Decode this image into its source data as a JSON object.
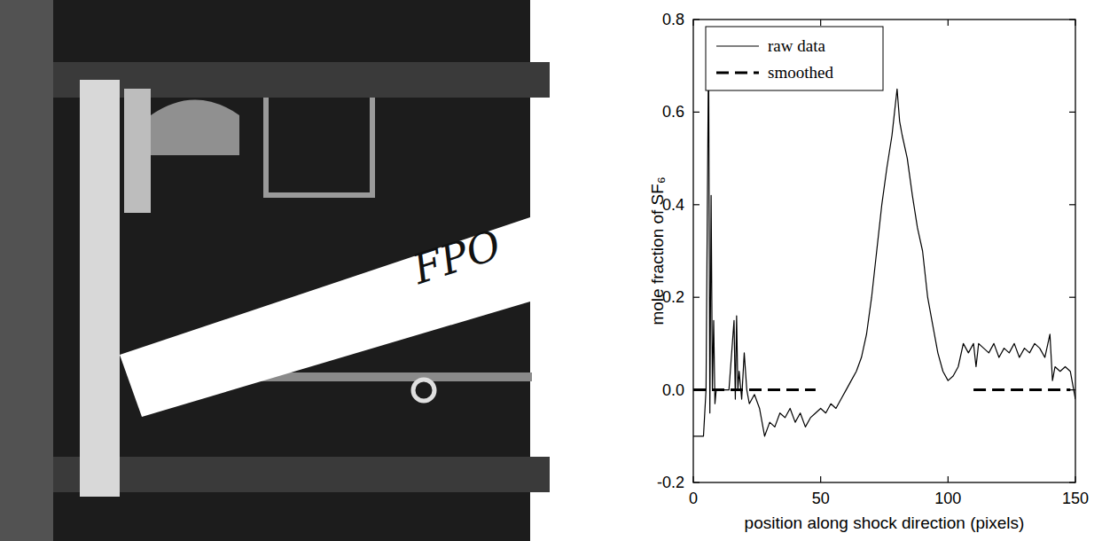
{
  "chart_data": {
    "type": "line",
    "x_label": "position along shock direction (pixels)",
    "y_label": "mole fraction of SF₆",
    "xlim": [
      0,
      150
    ],
    "xticks": [
      0,
      50,
      100,
      150
    ],
    "ylim": [
      -0.2,
      0.8
    ],
    "yticks": [
      -0.2,
      {
        "value": 0,
        "label": "0.0"
      },
      0.2,
      0.4,
      0.6,
      0.8
    ],
    "legend": "upper left",
    "series": [
      {
        "name": "raw data",
        "color": "#000000",
        "line_style": "solid",
        "x": [
          0,
          2,
          4,
          5,
          6,
          6.5,
          7,
          7.5,
          8,
          8.5,
          9,
          10,
          12,
          14,
          16,
          16.5,
          17,
          17.5,
          18,
          19,
          20,
          21,
          22,
          24,
          26,
          28,
          30,
          32,
          34,
          36,
          38,
          40,
          42,
          44,
          46,
          48,
          50,
          52,
          54,
          56,
          58,
          60,
          62,
          64,
          66,
          68,
          70,
          72,
          74,
          76,
          78,
          79,
          80,
          81,
          82,
          84,
          86,
          88,
          90,
          92,
          94,
          96,
          98,
          100,
          102,
          104,
          106,
          108,
          110,
          111,
          112,
          114,
          116,
          118,
          120,
          122,
          124,
          126,
          128,
          130,
          132,
          134,
          136,
          138,
          140,
          141,
          142,
          144,
          146,
          148,
          150
        ],
        "values": [
          -0.1,
          -0.1,
          -0.1,
          0,
          0.75,
          -0.05,
          0.42,
          0,
          0.15,
          -0.03,
          0,
          0,
          0,
          0,
          0.15,
          -0.02,
          0.16,
          0,
          0.04,
          -0.02,
          0.08,
          0,
          -0.03,
          -0.01,
          -0.04,
          -0.1,
          -0.07,
          -0.08,
          -0.05,
          -0.06,
          -0.04,
          -0.07,
          -0.05,
          -0.08,
          -0.06,
          -0.05,
          -0.04,
          -0.05,
          -0.03,
          -0.04,
          -0.02,
          0,
          0.02,
          0.04,
          0.07,
          0.12,
          0.2,
          0.3,
          0.4,
          0.48,
          0.55,
          0.6,
          0.65,
          0.58,
          0.55,
          0.5,
          0.42,
          0.35,
          0.3,
          0.2,
          0.14,
          0.08,
          0.04,
          0.02,
          0.03,
          0.05,
          0.1,
          0.08,
          0.1,
          0.05,
          0.1,
          0.09,
          0.08,
          0.1,
          0.07,
          0.09,
          0.08,
          0.1,
          0.07,
          0.09,
          0.08,
          0.1,
          0.09,
          0.07,
          0.12,
          0.02,
          0.05,
          0.04,
          0.05,
          0.04,
          -0.02
        ]
      },
      {
        "name": "smoothed",
        "color": "#000000",
        "line_style": "dashed",
        "x": [
          0,
          10,
          20,
          30,
          40,
          48,
          50,
          110,
          120,
          130,
          140,
          148
        ],
        "values": [
          0,
          0,
          0,
          0,
          0,
          0,
          null,
          0,
          0,
          0,
          0,
          0
        ]
      }
    ]
  },
  "photo": {
    "label": "FPO"
  }
}
